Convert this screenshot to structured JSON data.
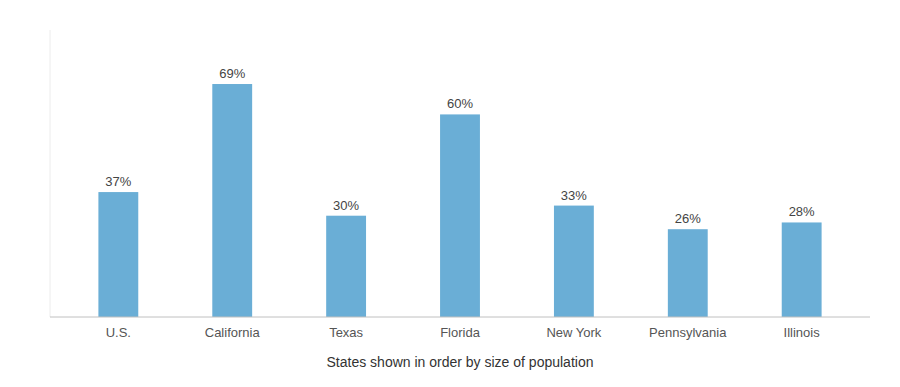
{
  "chart_data": {
    "type": "bar",
    "xlabel": "States shown in order by size of population",
    "categories": [
      "U.S.",
      "California",
      "Texas",
      "Florida",
      "New York",
      "Pennsylvania",
      "Illinois"
    ],
    "values": [
      37,
      69,
      30,
      60,
      33,
      26,
      28
    ],
    "value_labels": [
      "37%",
      "69%",
      "30%",
      "60%",
      "33%",
      "26%",
      "28%"
    ],
    "color": "#6aaed6",
    "ylim": [
      0,
      85
    ],
    "grid": false,
    "data_labels": true,
    "tick_labels": "x"
  }
}
